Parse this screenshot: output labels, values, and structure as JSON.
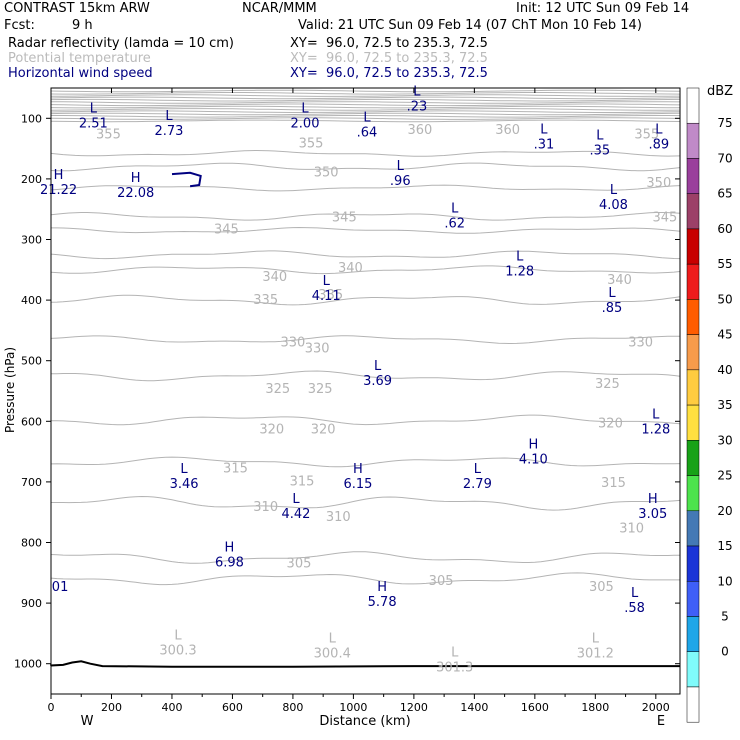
{
  "header": {
    "model": "CONTRAST 15km ARW",
    "org": "NCAR/MMM",
    "init": "Init: 12 UTC Sun 09 Feb 14",
    "fcst_label": "Fcst:",
    "fcst_value": "9 h",
    "valid": "Valid: 21 UTC Sun 09 Feb 14 (07 ChT Mon 10 Feb 14)"
  },
  "legend": [
    {
      "name": "Radar reflectivity (lamda = 10 cm)",
      "xy": "XY=  96.0, 72.5 to 235.3, 72.5",
      "color": "#000000"
    },
    {
      "name": "Potential temperature",
      "xy": "XY=  96.0, 72.5 to 235.3, 72.5",
      "color": "#bbbbbb"
    },
    {
      "name": "Horizontal wind speed",
      "xy": "XY=  96.0, 72.5 to 235.3, 72.5",
      "color": "#000080"
    }
  ],
  "chart_data": {
    "type": "cross-section contour",
    "title": "CONTRAST 15km ARW",
    "xlabel": "Distance (km)",
    "ylabel": "Pressure (hPa)",
    "xlim": [
      0,
      2080
    ],
    "ylim": [
      1050,
      50
    ],
    "x_ticks": [
      0,
      200,
      400,
      600,
      800,
      1000,
      1200,
      1400,
      1600,
      1800,
      2000
    ],
    "y_ticks": [
      100,
      200,
      300,
      400,
      500,
      600,
      700,
      800,
      900,
      1000
    ],
    "x_end_labels": {
      "left": "W",
      "right": "E"
    },
    "colorbar": {
      "unit": "dBZ",
      "levels": [
        "75",
        "70",
        "65",
        "60",
        "55",
        "50",
        "45",
        "40",
        "35",
        "30",
        "25",
        "20",
        "15",
        "10",
        "5",
        "0"
      ],
      "colors": [
        "#ffffff",
        "#c08ac8",
        "#9a3f9c",
        "#9c4068",
        "#c80000",
        "#ee1c1c",
        "#ff5c00",
        "#f79b4b",
        "#ffcc40",
        "#ffe040",
        "#18a218",
        "#4de34d",
        "#4479b5",
        "#1a34d7",
        "#3f5ff7",
        "#1fa6e8",
        "#80fbfb",
        "#ffffff"
      ]
    },
    "theta_labels": [
      {
        "v": "355",
        "x": 190,
        "p": 125
      },
      {
        "v": "355",
        "x": 860,
        "p": 140
      },
      {
        "v": "355",
        "x": 1970,
        "p": 125
      },
      {
        "v": "360",
        "x": 1220,
        "p": 118
      },
      {
        "v": "360",
        "x": 1510,
        "p": 118
      },
      {
        "v": "350",
        "x": 910,
        "p": 188
      },
      {
        "v": "350",
        "x": 2010,
        "p": 205
      },
      {
        "v": "345",
        "x": 580,
        "p": 282
      },
      {
        "v": "345",
        "x": 970,
        "p": 262
      },
      {
        "v": "345",
        "x": 2030,
        "p": 262
      },
      {
        "v": "340",
        "x": 740,
        "p": 360
      },
      {
        "v": "340",
        "x": 990,
        "p": 345
      },
      {
        "v": "340",
        "x": 1880,
        "p": 365
      },
      {
        "v": "335",
        "x": 710,
        "p": 398
      },
      {
        "v": "335",
        "x": 925,
        "p": 390
      },
      {
        "v": "330",
        "x": 800,
        "p": 468
      },
      {
        "v": "330",
        "x": 880,
        "p": 478
      },
      {
        "v": "330",
        "x": 1950,
        "p": 468
      },
      {
        "v": "325",
        "x": 750,
        "p": 545
      },
      {
        "v": "325",
        "x": 890,
        "p": 545
      },
      {
        "v": "325",
        "x": 1840,
        "p": 537
      },
      {
        "v": "320",
        "x": 730,
        "p": 612
      },
      {
        "v": "320",
        "x": 900,
        "p": 612
      },
      {
        "v": "320",
        "x": 1850,
        "p": 602
      },
      {
        "v": "315",
        "x": 610,
        "p": 676
      },
      {
        "v": "315",
        "x": 830,
        "p": 698
      },
      {
        "v": "315",
        "x": 1860,
        "p": 700
      },
      {
        "v": "310",
        "x": 710,
        "p": 740
      },
      {
        "v": "310",
        "x": 950,
        "p": 756
      },
      {
        "v": "310",
        "x": 1920,
        "p": 775
      },
      {
        "v": "305",
        "x": 820,
        "p": 833
      },
      {
        "v": "305",
        "x": 1290,
        "p": 862
      },
      {
        "v": "305",
        "x": 1820,
        "p": 872
      }
    ],
    "theta_lines": [
      {
        "p": 325,
        "amp": 8
      },
      {
        "p": 350,
        "amp": 8
      },
      {
        "p": 400,
        "amp": 10
      },
      {
        "p": 465,
        "amp": 8
      },
      {
        "p": 525,
        "amp": 10
      },
      {
        "p": 598,
        "amp": 10
      },
      {
        "p": 667,
        "amp": 10
      },
      {
        "p": 735,
        "amp": 14
      },
      {
        "p": 825,
        "amp": 12
      },
      {
        "p": 860,
        "amp": 12
      }
    ],
    "wind_labels": [
      {
        "t": "L",
        "v": "2.51",
        "x": 140,
        "p": 95
      },
      {
        "t": "L",
        "v": "2.73",
        "x": 390,
        "p": 108
      },
      {
        "t": "L",
        "v": "2.00",
        "x": 840,
        "p": 95
      },
      {
        "t": "L",
        "v": ".64",
        "x": 1045,
        "p": 110
      },
      {
        "t": "L",
        "v": ".23",
        "x": 1210,
        "p": 67
      },
      {
        "t": "L",
        "v": ".31",
        "x": 1630,
        "p": 130
      },
      {
        "t": "L",
        "v": ".35",
        "x": 1815,
        "p": 140
      },
      {
        "t": "L",
        "v": ".89",
        "x": 2010,
        "p": 130
      },
      {
        "t": "H",
        "v": "21.22",
        "x": 25,
        "p": 205
      },
      {
        "t": "H",
        "v": "22.08",
        "x": 280,
        "p": 210
      },
      {
        "t": "L",
        "v": ".96",
        "x": 1155,
        "p": 190
      },
      {
        "t": "L",
        "v": "4.08",
        "x": 1860,
        "p": 230
      },
      {
        "t": "L",
        "v": ".62",
        "x": 1335,
        "p": 260
      },
      {
        "t": "L",
        "v": "1.28",
        "x": 1550,
        "p": 340
      },
      {
        "t": "L",
        "v": "4.11",
        "x": 910,
        "p": 380
      },
      {
        "t": "L",
        "v": ".85",
        "x": 1855,
        "p": 400
      },
      {
        "t": "L",
        "v": "3.69",
        "x": 1080,
        "p": 520
      },
      {
        "t": "L",
        "v": "1.28",
        "x": 2000,
        "p": 600
      },
      {
        "t": "H",
        "v": "4.10",
        "x": 1595,
        "p": 650
      },
      {
        "t": "L",
        "v": "3.46",
        "x": 440,
        "p": 690
      },
      {
        "t": "H",
        "v": "6.15",
        "x": 1015,
        "p": 690
      },
      {
        "t": "L",
        "v": "2.79",
        "x": 1410,
        "p": 690
      },
      {
        "t": "L",
        "v": "4.42",
        "x": 810,
        "p": 740
      },
      {
        "t": "H",
        "v": "3.05",
        "x": 1990,
        "p": 740
      },
      {
        "t": "H",
        "v": "6.98",
        "x": 590,
        "p": 820
      },
      {
        "t": "H",
        "v": "5.78",
        "x": 1095,
        "p": 885
      },
      {
        "t": "L",
        "v": ".58",
        "x": 1930,
        "p": 895
      },
      {
        "t": "",
        "v": "01",
        "x": 30,
        "p": 860
      }
    ],
    "surface_labels": [
      {
        "t": "L",
        "v": "300.3",
        "x": 420,
        "p": 965
      },
      {
        "t": "L",
        "v": "300.4",
        "x": 930,
        "p": 970
      },
      {
        "t": "L",
        "v": "301.3",
        "x": 1335,
        "p": 993
      },
      {
        "t": "L",
        "v": "301.2",
        "x": 1800,
        "p": 970
      }
    ],
    "reflectivity": [
      {
        "x": 400,
        "p": 192
      },
      {
        "x": 460,
        "p": 190
      },
      {
        "x": 495,
        "p": 195
      },
      {
        "x": 490,
        "p": 210
      },
      {
        "x": 460,
        "p": 212
      }
    ]
  }
}
